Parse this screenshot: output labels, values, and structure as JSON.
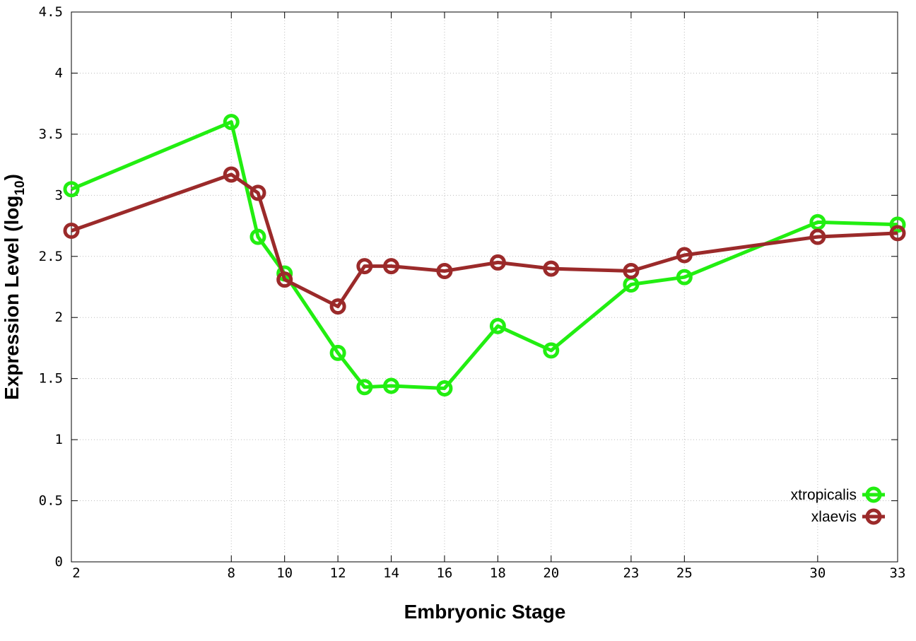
{
  "chart_data": {
    "type": "line",
    "title": "",
    "xlabel": "Embryonic Stage",
    "ylabel": {
      "main": "Expression Level (log",
      "sub": "10",
      "close": ")"
    },
    "x": [
      2,
      8,
      9,
      10,
      12,
      13,
      14,
      16,
      18,
      20,
      23,
      25,
      30,
      33
    ],
    "xticks": [
      "2",
      "8",
      "10",
      "12",
      "14",
      "16",
      "18",
      "20",
      "23",
      "25",
      "30",
      "33"
    ],
    "yticks": [
      "0",
      "0.5",
      "1",
      "1.5",
      "2",
      "2.5",
      "3",
      "3.5",
      "4",
      "4.5"
    ],
    "ylim": [
      0,
      4.5
    ],
    "grid": true,
    "legend_position": "bottom-right",
    "series": [
      {
        "name": "xtropicalis",
        "color": "#22ee11",
        "values": [
          3.05,
          3.6,
          2.66,
          2.36,
          1.71,
          1.43,
          1.44,
          1.42,
          1.93,
          1.73,
          2.27,
          2.33,
          2.78,
          2.76
        ]
      },
      {
        "name": "xlaevis",
        "color": "#9b2a2a",
        "values": [
          2.71,
          3.17,
          3.02,
          2.31,
          2.09,
          2.42,
          2.42,
          2.38,
          2.45,
          2.4,
          2.38,
          2.51,
          2.66,
          2.69
        ]
      }
    ]
  }
}
